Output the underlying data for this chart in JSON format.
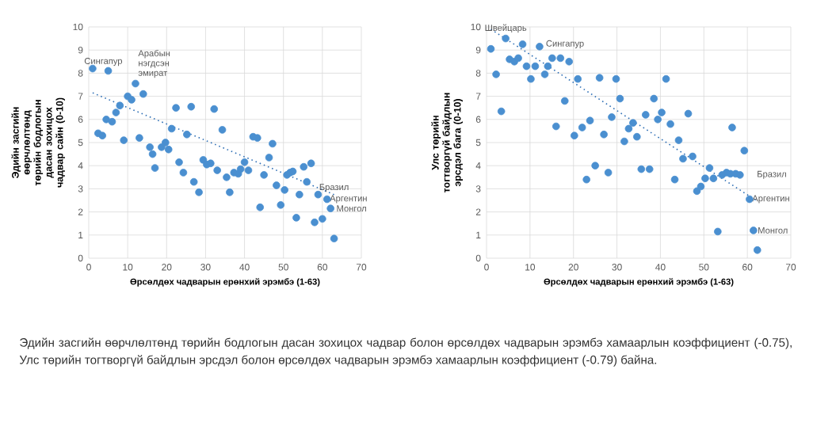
{
  "chart_data": [
    {
      "type": "scatter",
      "xlabel": "Өрсөлдөх чадварын ерөнхий эрэмбэ (1-63)",
      "ylabel": "Эдийн засгийн өөрчлөлтөнд төрийн бодлогын дасан зохицох чадвар сайн (0-10)",
      "xlim": [
        0,
        70
      ],
      "ylim": [
        0,
        10
      ],
      "xticks": [
        0,
        10,
        20,
        30,
        40,
        50,
        60,
        70
      ],
      "yticks": [
        0,
        1,
        2,
        3,
        4,
        5,
        6,
        7,
        8,
        9,
        10
      ],
      "grid": true,
      "marker": "circle",
      "series": [
        {
          "color": "#4a8fd0",
          "x": [
            1,
            5,
            12,
            14,
            10,
            11,
            8,
            7,
            4.5,
            6,
            2.4,
            3.5,
            9,
            13,
            15.7,
            16.4,
            17,
            18.7,
            19.7,
            20.5,
            21.3,
            22.4,
            26.3,
            25.2,
            23.2,
            24.3,
            27,
            28.3,
            29.4,
            30.3,
            31.3,
            32.2,
            33,
            34.3,
            35.4,
            36.2,
            37.3,
            38.4,
            39,
            40,
            41,
            42.2,
            43.3,
            44,
            45,
            46.3,
            47.2,
            48.2,
            49.3,
            50.3,
            50.9,
            51.7,
            52.4,
            53.3,
            54.1,
            55.2,
            56,
            57.1,
            58,
            58.9,
            60,
            61.2,
            62.1,
            63
          ],
          "values": [
            8.2,
            8.1,
            7.55,
            7.1,
            7.0,
            6.85,
            6.6,
            6.3,
            6.0,
            5.9,
            5.4,
            5.3,
            5.1,
            5.2,
            4.8,
            4.5,
            3.9,
            4.8,
            5.0,
            4.7,
            5.6,
            6.5,
            6.55,
            5.35,
            4.15,
            3.7,
            3.3,
            2.85,
            4.25,
            4.05,
            4.1,
            6.45,
            3.8,
            5.55,
            3.5,
            2.85,
            3.7,
            3.65,
            3.85,
            4.15,
            3.8,
            5.25,
            5.2,
            2.2,
            3.6,
            4.35,
            4.95,
            3.15,
            2.3,
            2.95,
            3.6,
            3.7,
            3.75,
            1.75,
            2.75,
            3.95,
            3.3,
            4.1,
            1.55,
            2.75,
            1.7,
            2.55,
            2.15,
            0.85
          ]
        },
        {
          "type": "line",
          "color": "#2f6fb5",
          "line_style": "dotted",
          "marker": "none",
          "x": [
            1,
            63
          ],
          "values": [
            7.15,
            2.75
          ]
        }
      ],
      "annotations": [
        {
          "text": "Сингапур",
          "x": 1,
          "y": 8.2
        },
        {
          "text": "Арабын нэгдсэн эмират",
          "x": 12,
          "y": 7.55
        },
        {
          "text": "Бразил",
          "x": 58.9,
          "y": 2.75
        },
        {
          "text": "Аргентин",
          "x": 61.2,
          "y": 2.55
        },
        {
          "text": "Монгол",
          "x": 62.1,
          "y": 2.15
        },
        "Эдийн засгийн өөрчлөлтөнд төрийн бодлогын дасан зохицох чадвар болон өрсөлдөх чадварын эрэмбэ хамаарлын коэффициент (-0.75), Улс төрийн тогтворгүй байдлын эрсдэл болон өрсөлдөх чадварын эрэмбэ хамаарлын коэффициент (-0.79) байна."
      ]
    },
    {
      "type": "scatter",
      "xlabel": "Өрсөлдөх чадварын ерөнхий эрэмбэ (1-63)",
      "ylabel": "Улс төрийн тогтворгүй байдлын эрсдэл бага (0-10)",
      "xlim": [
        0,
        70
      ],
      "ylim": [
        0,
        10
      ],
      "xticks": [
        0,
        10,
        20,
        30,
        40,
        50,
        60,
        70
      ],
      "yticks": [
        0,
        1,
        2,
        3,
        4,
        5,
        6,
        7,
        8,
        9,
        10
      ],
      "grid": true,
      "marker": "circle",
      "series": [
        {
          "color": "#4a8fd0",
          "x": [
            1,
            4.4,
            2.2,
            3.4,
            5.3,
            6.4,
            7.3,
            8.3,
            9.2,
            10.2,
            11.2,
            12.2,
            13.4,
            14.1,
            15.1,
            16,
            17,
            18,
            19,
            20.2,
            21,
            22,
            23,
            23.8,
            25,
            26,
            27,
            28,
            28.8,
            29.8,
            30.7,
            31.7,
            32.7,
            33.7,
            34.6,
            35.6,
            36.6,
            37.5,
            38.5,
            39.4,
            40.3,
            41.3,
            42.3,
            43.3,
            44.2,
            45.2,
            46.4,
            47.4,
            48.4,
            49.3,
            50.3,
            51.3,
            52.2,
            53.2,
            54.2,
            55.2,
            56.1,
            56.5,
            57.3,
            58.3,
            59.3,
            60.5,
            61.4,
            62.3
          ],
          "values": [
            9.05,
            9.5,
            7.95,
            6.35,
            8.6,
            8.5,
            8.65,
            9.25,
            8.3,
            7.75,
            8.3,
            9.15,
            7.95,
            8.3,
            8.65,
            5.7,
            8.65,
            6.8,
            8.5,
            5.3,
            7.75,
            5.65,
            3.4,
            5.95,
            4.0,
            7.8,
            5.35,
            3.7,
            6.1,
            7.75,
            6.9,
            5.05,
            5.6,
            5.85,
            5.25,
            3.85,
            6.2,
            3.85,
            6.9,
            6.0,
            6.3,
            7.75,
            5.8,
            3.4,
            5.1,
            4.3,
            6.25,
            4.4,
            2.9,
            3.1,
            3.45,
            3.9,
            3.45,
            1.15,
            3.6,
            3.7,
            3.65,
            5.65,
            3.65,
            3.6,
            4.65,
            2.55,
            1.2,
            0.35
          ]
        },
        {
          "type": "line",
          "color": "#2f6fb5",
          "line_style": "dotted",
          "marker": "none",
          "x": [
            1,
            62
          ],
          "values": [
            9.9,
            2.5
          ]
        }
      ],
      "annotations": [
        {
          "text": "Швейцарь",
          "x": 4.4,
          "y": 9.5
        },
        {
          "text": "Сингапур",
          "x": 8.3,
          "y": 9.25
        },
        {
          "text": "Бразил",
          "x": 58.3,
          "y": 3.6
        },
        {
          "text": "Аргентин",
          "x": 60.5,
          "y": 2.55
        },
        {
          "text": "Монгол",
          "x": 61.4,
          "y": 1.2
        }
      ]
    }
  ]
}
